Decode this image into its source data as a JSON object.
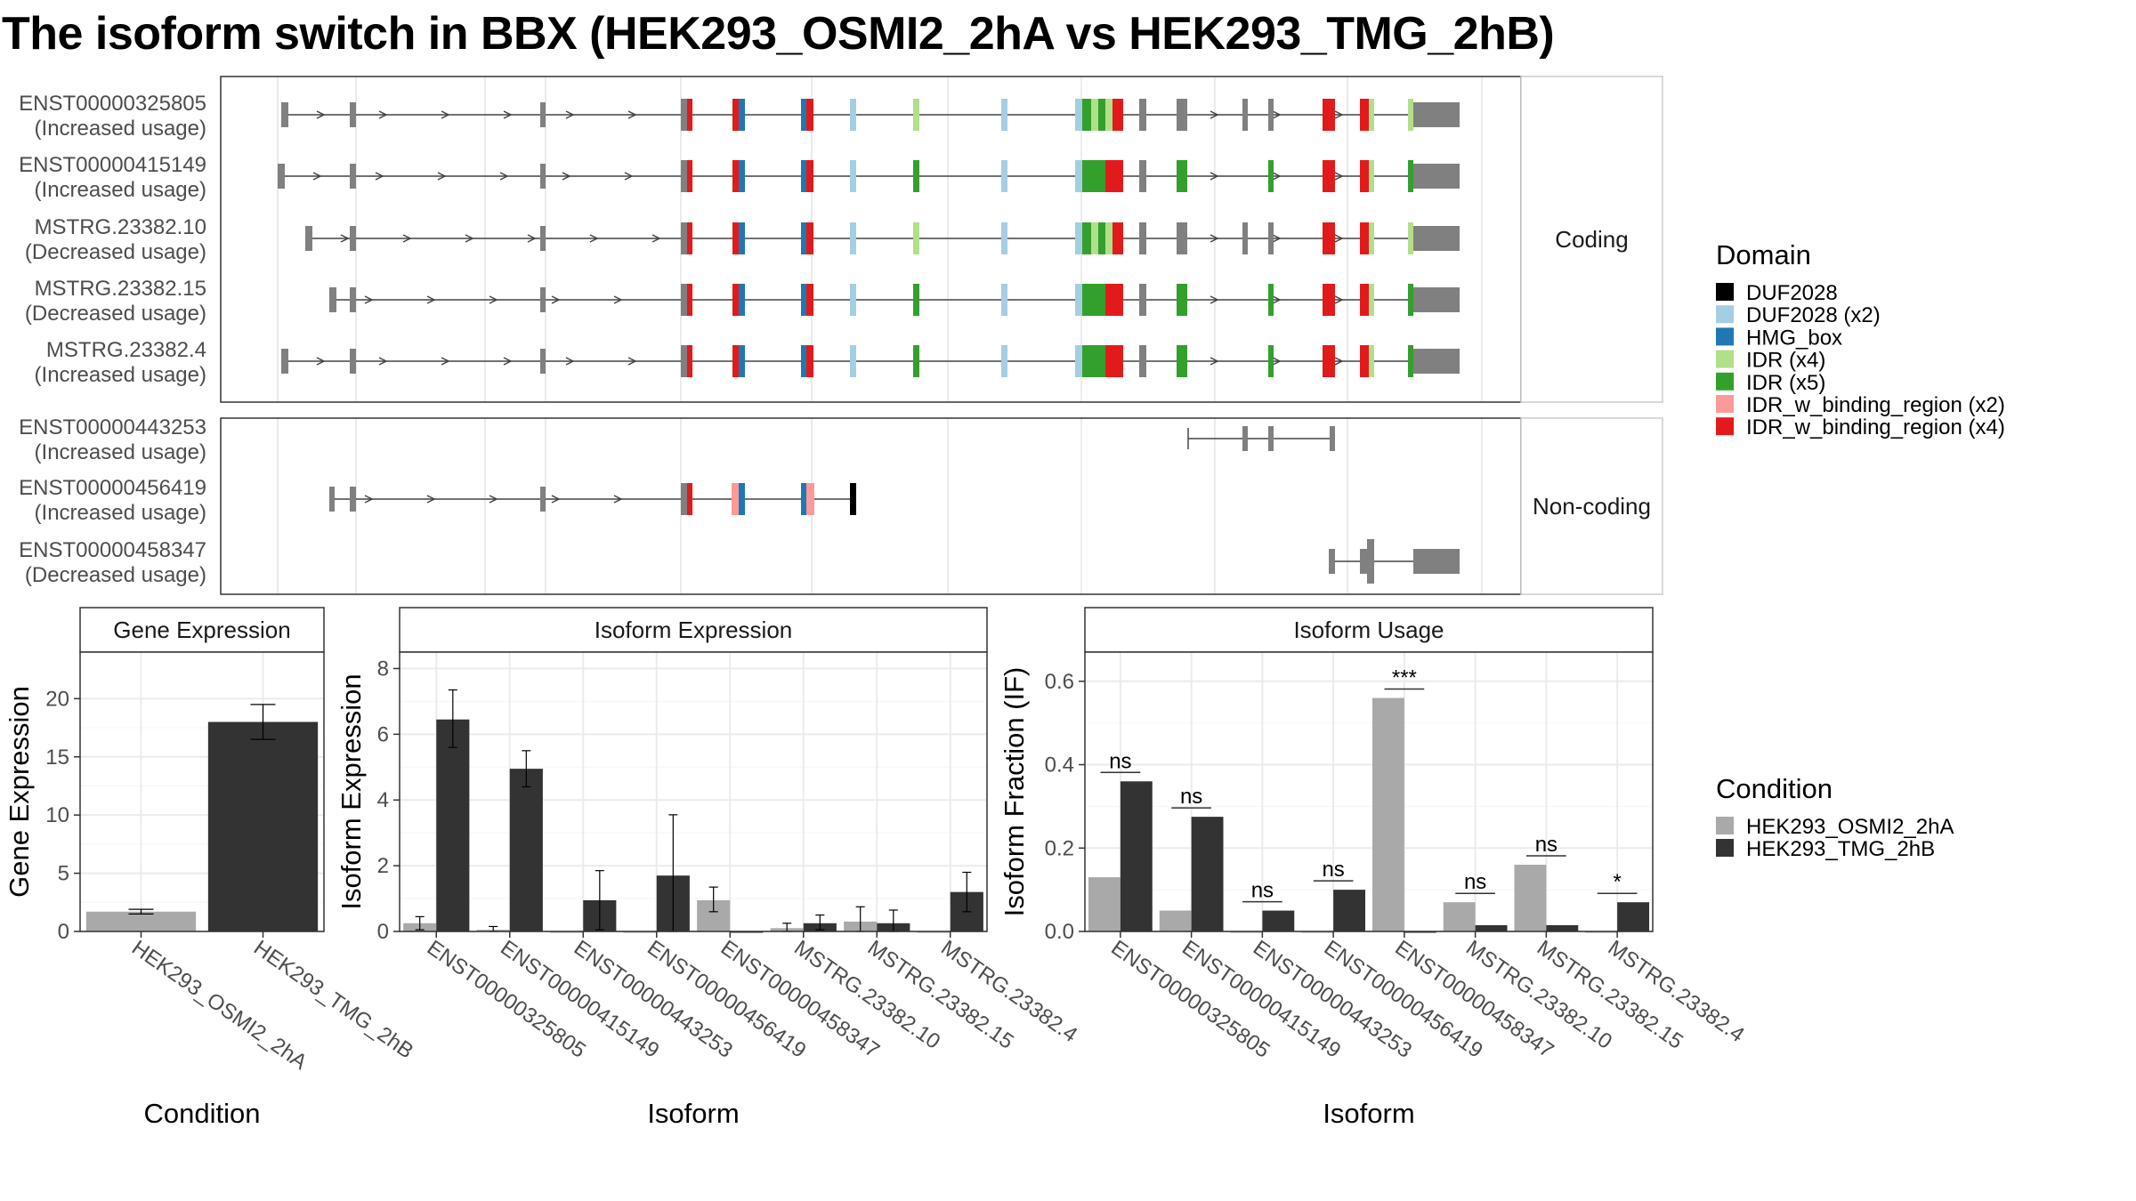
{
  "title": "The isoform switch in BBX (HEK293_OSMI2_2hA vs HEK293_TMG_2hB)",
  "colors": {
    "cond1": "#a9a9a9",
    "cond2": "#333333",
    "backbone": "#808080",
    "domains": {
      "DUF2028": "#000000",
      "DUF2028 (x2)": "#a6cee3",
      "HMG_box": "#1f78b4",
      "IDR (x4)": "#b2df8a",
      "IDR (x5)": "#33a02c",
      "IDR_w_binding_region (x2)": "#fb9a99",
      "IDR_w_binding_region (x4)": "#e31a1c"
    }
  },
  "chart_data": [
    {
      "type": "gene-structure",
      "facets": [
        "Coding",
        "Non-coding"
      ],
      "legend_title": "Domain",
      "legend": [
        "DUF2028",
        "DUF2028 (x2)",
        "HMG_box",
        "IDR (x4)",
        "IDR (x5)",
        "IDR_w_binding_region (x2)",
        "IDR_w_binding_region (x4)"
      ],
      "isoforms": [
        {
          "id": "ENST00000325805",
          "usage": "(Increased usage)",
          "facet": "Coding"
        },
        {
          "id": "ENST00000415149",
          "usage": "(Increased usage)",
          "facet": "Coding"
        },
        {
          "id": "MSTRG.23382.10",
          "usage": "(Decreased usage)",
          "facet": "Coding"
        },
        {
          "id": "MSTRG.23382.15",
          "usage": "(Decreased usage)",
          "facet": "Coding"
        },
        {
          "id": "MSTRG.23382.4",
          "usage": "(Increased usage)",
          "facet": "Coding"
        },
        {
          "id": "ENST00000443253",
          "usage": "(Increased usage)",
          "facet": "Non-coding"
        },
        {
          "id": "ENST00000456419",
          "usage": "(Increased usage)",
          "facet": "Non-coding"
        },
        {
          "id": "ENST00000458347",
          "usage": "(Decreased usage)",
          "facet": "Non-coding"
        }
      ]
    },
    {
      "type": "bar",
      "title": "Gene Expression",
      "xlabel": "Condition",
      "ylabel": "Gene Expression",
      "categories": [
        "HEK293_OSMI2_2hA",
        "HEK293_TMG_2hB"
      ],
      "values": [
        1.7,
        18.0
      ],
      "errors": [
        [
          1.5,
          1.9
        ],
        [
          16.5,
          19.5
        ]
      ],
      "ylim": [
        0,
        24
      ],
      "yticks": [
        0,
        5,
        10,
        15,
        20
      ]
    },
    {
      "type": "bar",
      "title": "Isoform Expression",
      "xlabel": "Isoform",
      "ylabel": "Isoform Expression",
      "categories": [
        "ENST00000325805",
        "ENST00000415149",
        "ENST00000443253",
        "ENST00000456419",
        "ENST00000458347",
        "MSTRG.23382.10",
        "MSTRG.23382.15",
        "MSTRG.23382.4"
      ],
      "series": [
        {
          "name": "HEK293_OSMI2_2hA",
          "values": [
            0.25,
            0.05,
            0,
            0,
            0.95,
            0.1,
            0.3,
            0
          ],
          "errors": [
            [
              0.05,
              0.45
            ],
            [
              0,
              0.15
            ],
            [
              0,
              0
            ],
            [
              0,
              0
            ],
            [
              0.6,
              1.35
            ],
            [
              0,
              0.25
            ],
            [
              0,
              0.75
            ],
            [
              0,
              0
            ]
          ]
        },
        {
          "name": "HEK293_TMG_2hB",
          "values": [
            6.45,
            4.95,
            0.95,
            1.7,
            0,
            0.25,
            0.25,
            1.2
          ],
          "errors": [
            [
              5.6,
              7.35
            ],
            [
              4.4,
              5.5
            ],
            [
              0.05,
              1.85
            ],
            [
              0,
              3.55
            ],
            [
              0,
              0
            ],
            [
              0.05,
              0.5
            ],
            [
              0,
              0.65
            ],
            [
              0.6,
              1.8
            ]
          ]
        }
      ],
      "ylim": [
        0,
        8.5
      ],
      "yticks": [
        0,
        2,
        4,
        6,
        8
      ]
    },
    {
      "type": "bar",
      "title": "Isoform Usage",
      "xlabel": "Isoform",
      "ylabel": "Isoform Fraction (IF)",
      "categories": [
        "ENST00000325805",
        "ENST00000415149",
        "ENST00000443253",
        "ENST00000456419",
        "ENST00000458347",
        "MSTRG.23382.10",
        "MSTRG.23382.15",
        "MSTRG.23382.4"
      ],
      "series": [
        {
          "name": "HEK293_OSMI2_2hA",
          "values": [
            0.13,
            0.05,
            0,
            0,
            0.56,
            0.07,
            0.16,
            0
          ]
        },
        {
          "name": "HEK293_TMG_2hB",
          "values": [
            0.36,
            0.275,
            0.05,
            0.1,
            0,
            0.015,
            0.015,
            0.07
          ]
        }
      ],
      "significance": [
        "ns",
        "ns",
        "ns",
        "ns",
        "***",
        "ns",
        "ns",
        "*"
      ],
      "ylim": [
        0,
        0.67
      ],
      "yticks": [
        "0.0",
        "0.2",
        "0.4",
        "0.6"
      ],
      "legend_title": "Condition",
      "legend": [
        "HEK293_OSMI2_2hA",
        "HEK293_TMG_2hB"
      ]
    }
  ]
}
